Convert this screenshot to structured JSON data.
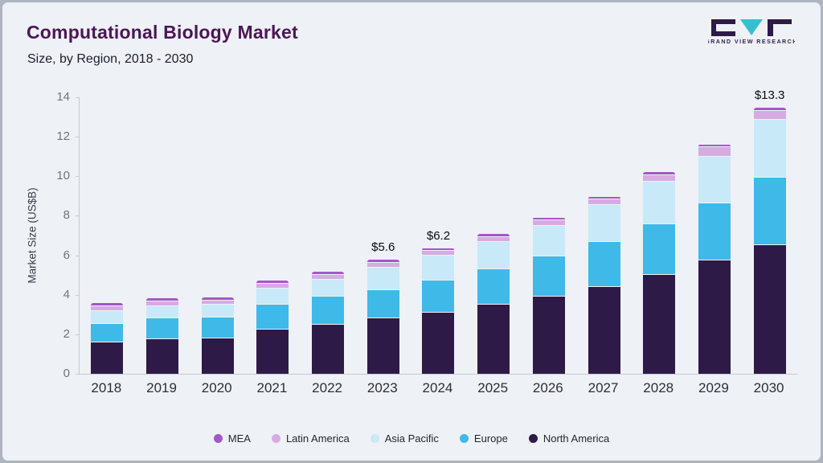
{
  "header": {
    "title": "Computational Biology Market",
    "subtitle": "Size, by Region, 2018 - 2030"
  },
  "logo": {
    "name": "Grand View Research",
    "text": "GRAND VIEW RESEARCH",
    "dark_color": "#2e1a47",
    "teal_color": "#35c0d0"
  },
  "chart_data": {
    "type": "bar",
    "stacked": true,
    "title": "Computational Biology Market Size, by Region, 2018 - 2030",
    "xlabel": "",
    "ylabel": "Market Size (US$B)",
    "ylim": [
      0,
      14
    ],
    "yticks": [
      0,
      2,
      4,
      6,
      8,
      10,
      12,
      14
    ],
    "grid": false,
    "legend_position": "bottom",
    "categories": [
      "2018",
      "2019",
      "2020",
      "2021",
      "2022",
      "2023",
      "2024",
      "2025",
      "2026",
      "2027",
      "2028",
      "2029",
      "2030"
    ],
    "series": [
      {
        "name": "North America",
        "color": "#2e1a47",
        "values": [
          1.6,
          1.75,
          1.8,
          2.25,
          2.5,
          2.8,
          3.1,
          3.5,
          3.9,
          4.4,
          5.0,
          5.75,
          6.5
        ]
      },
      {
        "name": "Europe",
        "color": "#3fb9e8",
        "values": [
          0.9,
          1.0,
          1.0,
          1.2,
          1.35,
          1.4,
          1.6,
          1.75,
          2.0,
          2.25,
          2.55,
          2.85,
          3.4
        ]
      },
      {
        "name": "Asia Pacific",
        "color": "#c7e9f8",
        "values": [
          0.6,
          0.6,
          0.6,
          0.8,
          0.85,
          1.1,
          1.2,
          1.35,
          1.5,
          1.8,
          2.1,
          2.3,
          2.9
        ]
      },
      {
        "name": "Latin America",
        "color": "#d6abe2",
        "values": [
          0.2,
          0.2,
          0.2,
          0.2,
          0.2,
          0.2,
          0.2,
          0.2,
          0.25,
          0.25,
          0.3,
          0.45,
          0.4
        ]
      },
      {
        "name": "MEA",
        "color": "#a258c8",
        "values": [
          0.1,
          0.1,
          0.1,
          0.1,
          0.1,
          0.1,
          0.1,
          0.1,
          0.1,
          0.1,
          0.1,
          0.1,
          0.1
        ]
      }
    ],
    "annotations": [
      {
        "category": "2023",
        "label": "$5.6"
      },
      {
        "category": "2024",
        "label": "$6.2"
      },
      {
        "category": "2030",
        "label": "$13.3"
      }
    ]
  }
}
